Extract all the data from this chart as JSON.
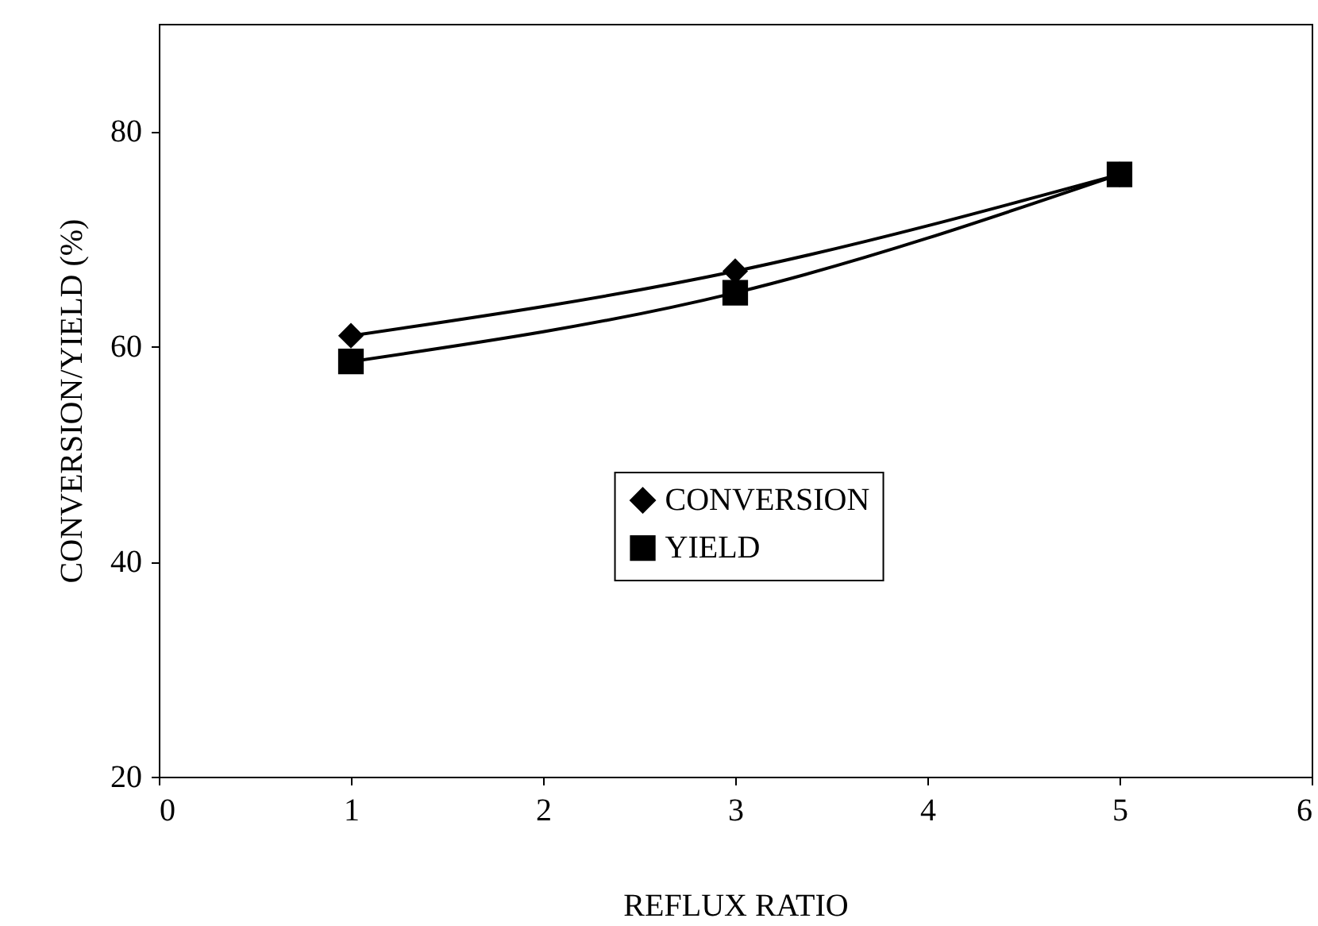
{
  "chart_data": {
    "type": "line",
    "xlabel": "REFLUX RATIO",
    "ylabel": "CONVERSION/YIELD (%)",
    "x": [
      1,
      3,
      5
    ],
    "series": [
      {
        "name": "CONVERSION",
        "color": "#000000",
        "marker": "diamond",
        "values": [
          61,
          67,
          76
        ]
      },
      {
        "name": "YIELD",
        "color": "#000000",
        "marker": "square",
        "values": [
          58.6,
          65,
          76
        ]
      }
    ],
    "xlim": [
      0,
      6
    ],
    "xticks": [
      0,
      1,
      2,
      3,
      4,
      5,
      6
    ],
    "ylim": [
      20,
      90
    ],
    "yticks": [
      20,
      40,
      60,
      80
    ],
    "grid": false,
    "legend": "right"
  }
}
